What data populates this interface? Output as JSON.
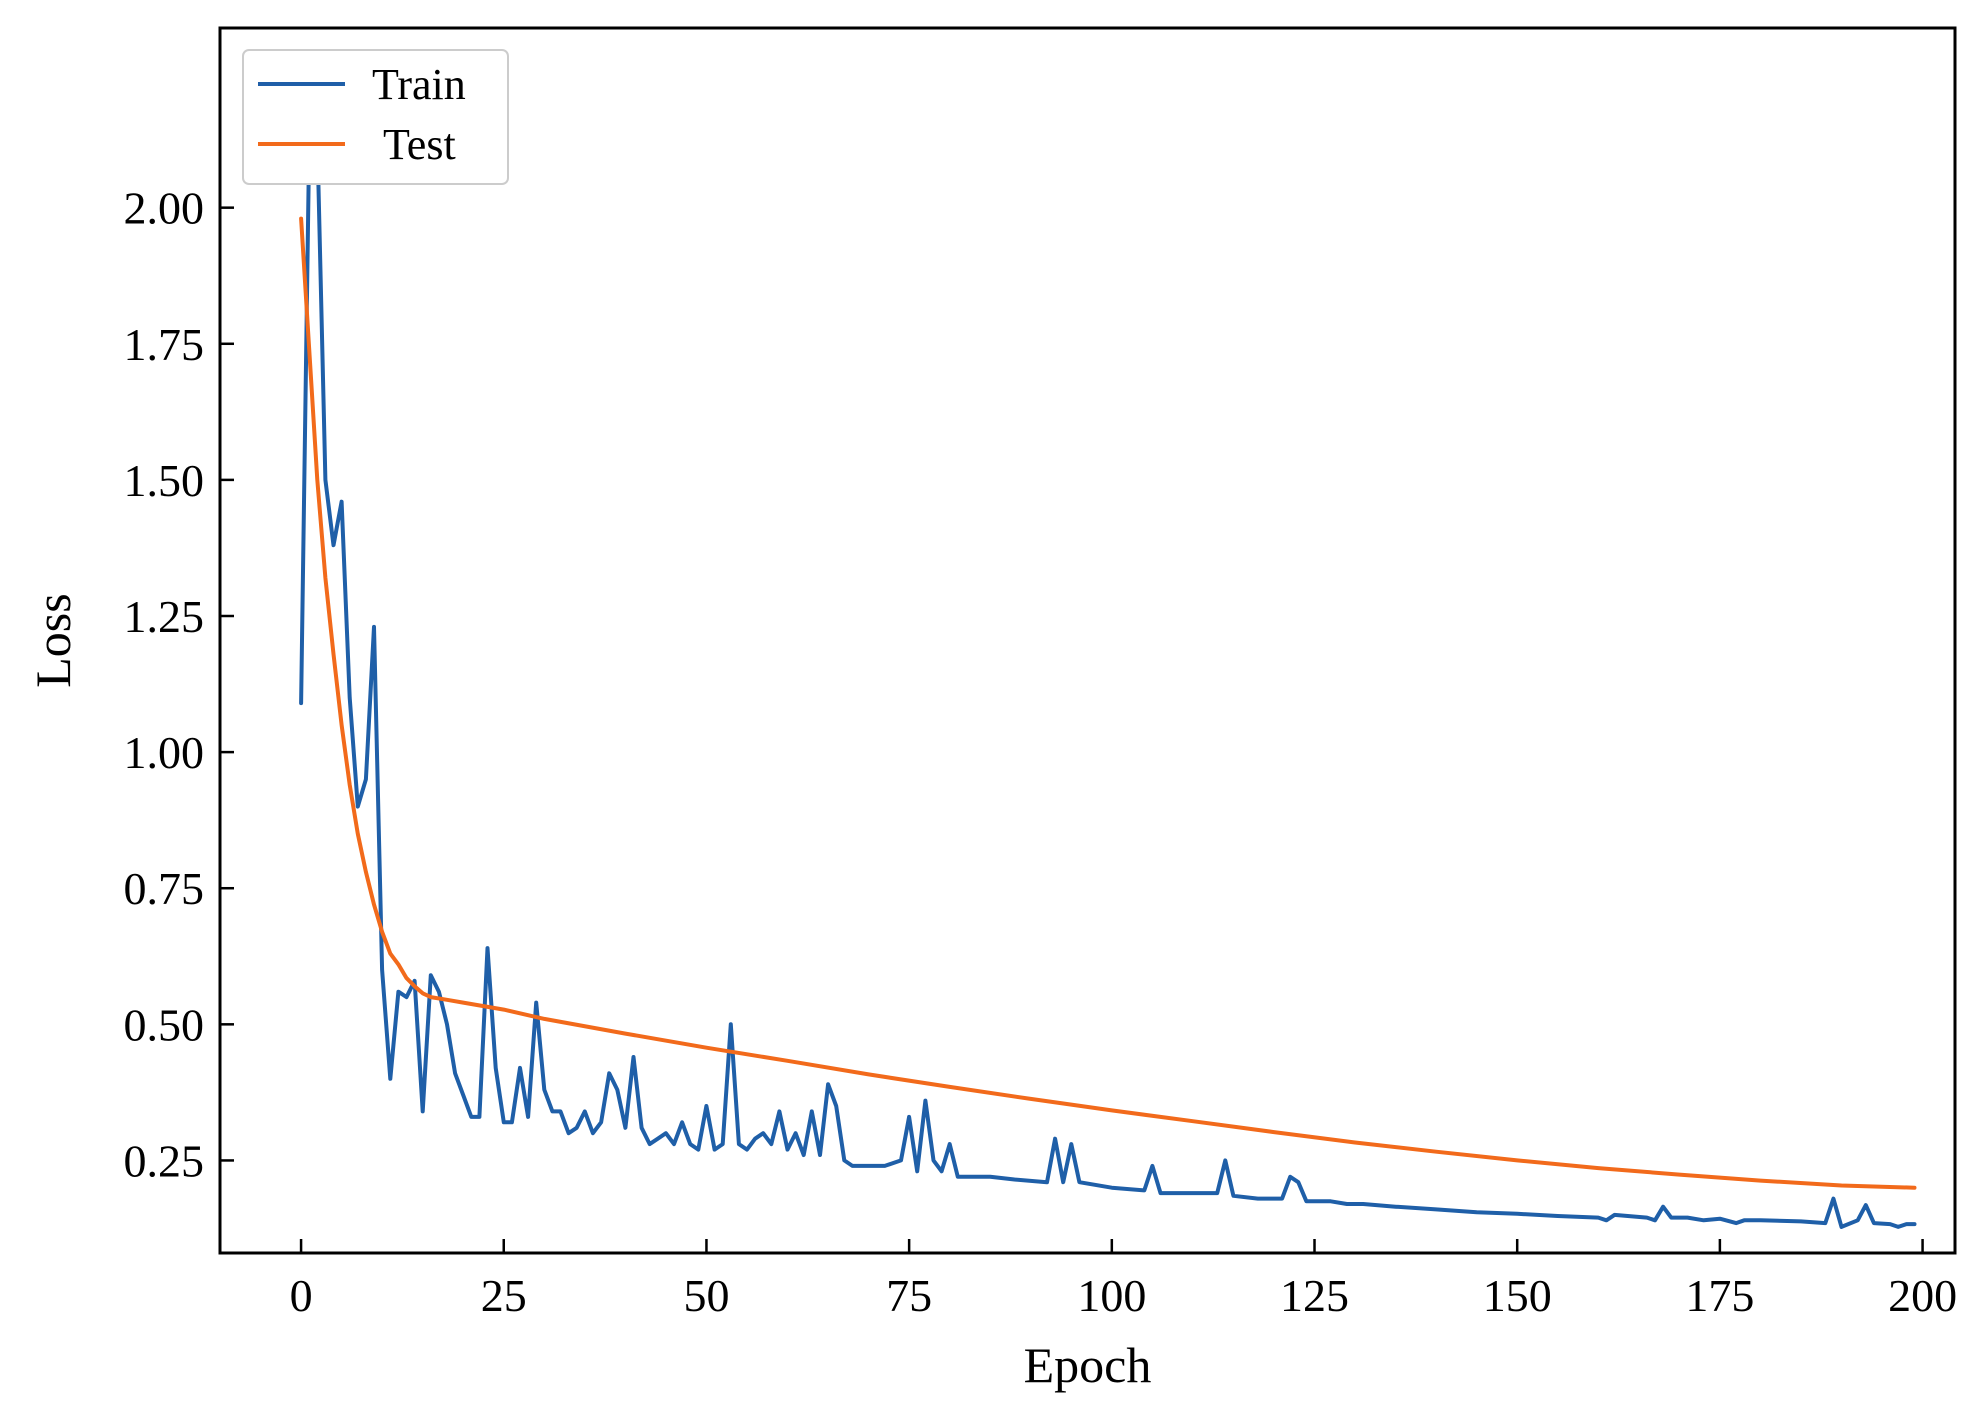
{
  "chart_data": {
    "type": "line",
    "xlabel": "Epoch",
    "ylabel": "Loss",
    "xlim": [
      -10,
      204
    ],
    "ylim": [
      0.08,
      2.33
    ],
    "xticks": [
      0,
      25,
      50,
      75,
      100,
      125,
      150,
      175,
      200
    ],
    "yticks": [
      0.25,
      0.5,
      0.75,
      1.0,
      1.25,
      1.5,
      1.75,
      2.0
    ],
    "ytick_labels": [
      "0.25",
      "0.50",
      "0.75",
      "1.00",
      "1.25",
      "1.50",
      "1.75",
      "2.00"
    ],
    "grid": false,
    "legend_position": "top-left",
    "series": [
      {
        "name": "Train",
        "color": "#1f5fa8",
        "points": [
          [
            0,
            1.09
          ],
          [
            1,
            2.12
          ],
          [
            2,
            2.13
          ],
          [
            3,
            1.5
          ],
          [
            4,
            1.38
          ],
          [
            5,
            1.46
          ],
          [
            6,
            1.1
          ],
          [
            7,
            0.9
          ],
          [
            8,
            0.95
          ],
          [
            9,
            1.23
          ],
          [
            10,
            0.6
          ],
          [
            11,
            0.4
          ],
          [
            12,
            0.56
          ],
          [
            13,
            0.55
          ],
          [
            14,
            0.58
          ],
          [
            15,
            0.34
          ],
          [
            16,
            0.59
          ],
          [
            17,
            0.56
          ],
          [
            18,
            0.5
          ],
          [
            19,
            0.41
          ],
          [
            20,
            0.37
          ],
          [
            21,
            0.33
          ],
          [
            22,
            0.33
          ],
          [
            23,
            0.64
          ],
          [
            24,
            0.42
          ],
          [
            25,
            0.32
          ],
          [
            26,
            0.32
          ],
          [
            27,
            0.42
          ],
          [
            28,
            0.33
          ],
          [
            29,
            0.54
          ],
          [
            30,
            0.38
          ],
          [
            31,
            0.34
          ],
          [
            32,
            0.34
          ],
          [
            33,
            0.3
          ],
          [
            34,
            0.31
          ],
          [
            35,
            0.34
          ],
          [
            36,
            0.3
          ],
          [
            37,
            0.32
          ],
          [
            38,
            0.41
          ],
          [
            39,
            0.38
          ],
          [
            40,
            0.31
          ],
          [
            41,
            0.44
          ],
          [
            42,
            0.31
          ],
          [
            43,
            0.28
          ],
          [
            44,
            0.29
          ],
          [
            45,
            0.3
          ],
          [
            46,
            0.28
          ],
          [
            47,
            0.32
          ],
          [
            48,
            0.28
          ],
          [
            49,
            0.27
          ],
          [
            50,
            0.35
          ],
          [
            51,
            0.27
          ],
          [
            52,
            0.28
          ],
          [
            53,
            0.5
          ],
          [
            54,
            0.28
          ],
          [
            55,
            0.27
          ],
          [
            56,
            0.29
          ],
          [
            57,
            0.3
          ],
          [
            58,
            0.28
          ],
          [
            59,
            0.34
          ],
          [
            60,
            0.27
          ],
          [
            61,
            0.3
          ],
          [
            62,
            0.26
          ],
          [
            63,
            0.34
          ],
          [
            64,
            0.26
          ],
          [
            65,
            0.39
          ],
          [
            66,
            0.35
          ],
          [
            67,
            0.25
          ],
          [
            68,
            0.24
          ],
          [
            70,
            0.24
          ],
          [
            72,
            0.24
          ],
          [
            74,
            0.25
          ],
          [
            75,
            0.33
          ],
          [
            76,
            0.23
          ],
          [
            77,
            0.36
          ],
          [
            78,
            0.25
          ],
          [
            79,
            0.23
          ],
          [
            80,
            0.28
          ],
          [
            81,
            0.22
          ],
          [
            85,
            0.22
          ],
          [
            88,
            0.215
          ],
          [
            92,
            0.21
          ],
          [
            93,
            0.29
          ],
          [
            94,
            0.21
          ],
          [
            95,
            0.28
          ],
          [
            96,
            0.21
          ],
          [
            100,
            0.2
          ],
          [
            104,
            0.195
          ],
          [
            105,
            0.24
          ],
          [
            106,
            0.19
          ],
          [
            110,
            0.19
          ],
          [
            113,
            0.19
          ],
          [
            114,
            0.25
          ],
          [
            115,
            0.185
          ],
          [
            118,
            0.18
          ],
          [
            121,
            0.18
          ],
          [
            122,
            0.22
          ],
          [
            123,
            0.21
          ],
          [
            124,
            0.175
          ],
          [
            127,
            0.175
          ],
          [
            129,
            0.17
          ],
          [
            131,
            0.17
          ],
          [
            135,
            0.165
          ],
          [
            140,
            0.16
          ],
          [
            145,
            0.155
          ],
          [
            150,
            0.152
          ],
          [
            155,
            0.148
          ],
          [
            160,
            0.145
          ],
          [
            161,
            0.14
          ],
          [
            162,
            0.15
          ],
          [
            166,
            0.145
          ],
          [
            167,
            0.14
          ],
          [
            168,
            0.165
          ],
          [
            169,
            0.145
          ],
          [
            171,
            0.145
          ],
          [
            173,
            0.14
          ],
          [
            175,
            0.143
          ],
          [
            177,
            0.135
          ],
          [
            178,
            0.14
          ],
          [
            180,
            0.14
          ],
          [
            185,
            0.138
          ],
          [
            188,
            0.135
          ],
          [
            189,
            0.18
          ],
          [
            190,
            0.128
          ],
          [
            192,
            0.14
          ],
          [
            193,
            0.168
          ],
          [
            194,
            0.135
          ],
          [
            196,
            0.133
          ],
          [
            197,
            0.128
          ],
          [
            198,
            0.133
          ],
          [
            199,
            0.133
          ]
        ]
      },
      {
        "name": "Test",
        "color": "#f26a1b",
        "points": [
          [
            0,
            1.98
          ],
          [
            1,
            1.74
          ],
          [
            2,
            1.5
          ],
          [
            3,
            1.32
          ],
          [
            4,
            1.18
          ],
          [
            5,
            1.05
          ],
          [
            6,
            0.94
          ],
          [
            7,
            0.85
          ],
          [
            8,
            0.78
          ],
          [
            9,
            0.72
          ],
          [
            10,
            0.67
          ],
          [
            11,
            0.63
          ],
          [
            12,
            0.61
          ],
          [
            13,
            0.585
          ],
          [
            14,
            0.57
          ],
          [
            15,
            0.557
          ],
          [
            16,
            0.55
          ],
          [
            18,
            0.545
          ],
          [
            20,
            0.54
          ],
          [
            25,
            0.527
          ],
          [
            30,
            0.51
          ],
          [
            40,
            0.483
          ],
          [
            50,
            0.457
          ],
          [
            60,
            0.433
          ],
          [
            70,
            0.408
          ],
          [
            80,
            0.385
          ],
          [
            90,
            0.363
          ],
          [
            100,
            0.342
          ],
          [
            110,
            0.322
          ],
          [
            120,
            0.302
          ],
          [
            130,
            0.283
          ],
          [
            140,
            0.266
          ],
          [
            150,
            0.25
          ],
          [
            160,
            0.236
          ],
          [
            170,
            0.224
          ],
          [
            180,
            0.213
          ],
          [
            190,
            0.204
          ],
          [
            199,
            0.2
          ]
        ]
      }
    ]
  }
}
